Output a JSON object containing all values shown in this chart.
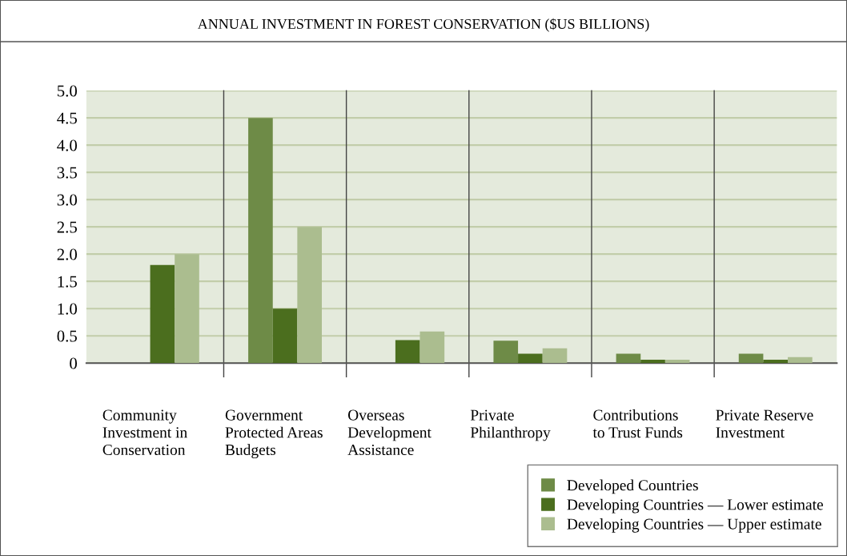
{
  "chart_data": {
    "type": "bar",
    "title": "ANNUAL INVESTMENT IN FOREST CONSERVATION ($US BILLIONS)",
    "categories": [
      "Community Investment in Conservation",
      "Government Protected Areas Budgets",
      "Overseas Development Assistance",
      "Private Philanthropy",
      "Contributions to Trust Funds",
      "Private Reserve Investment"
    ],
    "series": [
      {
        "name": "Developed Countries",
        "color": "#6e8b47",
        "values": [
          null,
          4.5,
          null,
          0.41,
          0.17,
          0.17
        ]
      },
      {
        "name": "Developing Countries — Lower estimate",
        "color": "#4b6e1e",
        "values": [
          1.8,
          1.0,
          0.42,
          0.17,
          0.06,
          0.06
        ]
      },
      {
        "name": "Developing Countries — Upper estimate",
        "color": "#abbd8f",
        "values": [
          2.0,
          2.5,
          0.58,
          0.27,
          0.06,
          0.11
        ]
      }
    ],
    "ylim": [
      0,
      5
    ],
    "yticks": [
      0,
      {
        "value": 0.5,
        "label": "0.5"
      },
      {
        "value": 1,
        "label": "1.0"
      },
      {
        "value": 1.5,
        "label": "1.5"
      },
      {
        "value": 2,
        "label": "2.0"
      },
      {
        "value": 2.5,
        "label": "2.5"
      },
      {
        "value": 3,
        "label": "3.0"
      },
      {
        "value": 3.5,
        "label": "3.5"
      },
      {
        "value": 4,
        "label": "4.0"
      },
      {
        "value": 4.5,
        "label": "4.5"
      },
      {
        "value": 5,
        "label": "5.0"
      }
    ],
    "grid": "y",
    "legend": "bottom right"
  }
}
